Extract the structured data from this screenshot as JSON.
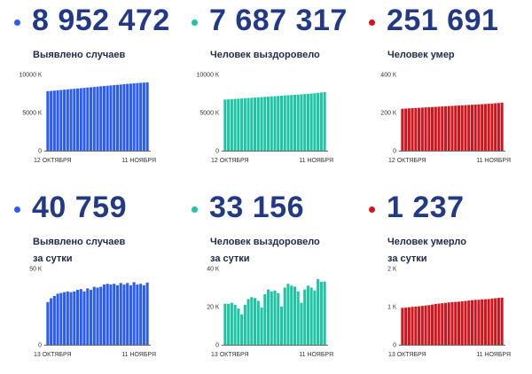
{
  "panels": [
    {
      "value": "8 952 472",
      "label_lines": [
        "Выявлено случаев"
      ],
      "color": "#2b5cf5",
      "chart_data": {
        "type": "bar",
        "x_start_label": "12 ОКТЯБРЯ",
        "x_end_label": "11 НОЯБРЯ",
        "y_tick_labels": [
          "10000 К",
          "5000 К",
          "0"
        ],
        "y_ticks": [
          10000,
          5000,
          0
        ],
        "ylim": [
          0,
          10000
        ],
        "units": "thousands",
        "values": [
          7800,
          7840,
          7880,
          7920,
          7960,
          8000,
          8040,
          8080,
          8120,
          8160,
          8200,
          8240,
          8280,
          8320,
          8360,
          8400,
          8440,
          8480,
          8520,
          8560,
          8600,
          8640,
          8680,
          8720,
          8760,
          8800,
          8840,
          8870,
          8900,
          8930,
          8953
        ]
      }
    },
    {
      "value": "7 687 317",
      "label_lines": [
        "Человек выздоровело"
      ],
      "color": "#1ec4a4",
      "chart_data": {
        "type": "bar",
        "x_start_label": "12 ОКТЯБРЯ",
        "x_end_label": "11 НОЯБРЯ",
        "y_tick_labels": [
          "10000 К",
          "5000 К",
          "0"
        ],
        "y_ticks": [
          10000,
          5000,
          0
        ],
        "ylim": [
          0,
          10000
        ],
        "units": "thousands",
        "values": [
          6700,
          6730,
          6760,
          6790,
          6820,
          6850,
          6880,
          6910,
          6940,
          6970,
          7000,
          7030,
          7060,
          7090,
          7120,
          7150,
          7180,
          7210,
          7240,
          7270,
          7300,
          7330,
          7360,
          7390,
          7420,
          7450,
          7490,
          7530,
          7580,
          7630,
          7687
        ]
      }
    },
    {
      "value": "251 691",
      "label_lines": [
        "Человек умер"
      ],
      "color": "#d3141c",
      "chart_data": {
        "type": "bar",
        "x_start_label": "12 ОКТЯБРЯ",
        "x_end_label": "11 НОЯБРЯ",
        "y_tick_labels": [
          "400 К",
          "200 К",
          "0"
        ],
        "y_ticks": [
          400,
          200,
          0
        ],
        "ylim": [
          0,
          400
        ],
        "units": "thousands",
        "values": [
          220,
          221,
          222,
          223,
          224,
          225,
          226,
          227,
          228,
          229,
          230,
          231,
          232,
          233,
          234,
          235,
          236,
          237,
          238,
          239,
          240,
          241,
          242,
          243,
          244,
          245,
          246,
          247,
          249,
          250,
          252
        ]
      }
    },
    {
      "value": "40 759",
      "label_lines": [
        "Выявлено случаев",
        "за сутки"
      ],
      "color": "#2b5cf5",
      "chart_data": {
        "type": "bar",
        "x_start_label": "13 ОКТЯБРЯ",
        "x_end_label": "11 НОЯБРЯ",
        "y_tick_labels": [
          "50 К",
          "0"
        ],
        "y_ticks": [
          50,
          0
        ],
        "ylim": [
          0,
          50
        ],
        "units": "thousands",
        "values": [
          28.0,
          30.5,
          32.0,
          33.5,
          34.0,
          34.5,
          35.0,
          34.5,
          35.0,
          36.0,
          36.5,
          35.0,
          37.0,
          36.0,
          38.0,
          37.5,
          38.0,
          39.5,
          40.0,
          39.5,
          40.0,
          39.0,
          40.5,
          39.5,
          40.5,
          39.0,
          41.0,
          39.5,
          40.0,
          39.0,
          40.8
        ]
      }
    },
    {
      "value": "33 156",
      "label_lines": [
        "Человек выздоровело",
        "за сутки"
      ],
      "color": "#1ec4a4",
      "chart_data": {
        "type": "bar",
        "x_start_label": "13 ОКТЯБРЯ",
        "x_end_label": "11 НОЯБРЯ",
        "y_tick_labels": [
          "40 К",
          "20 К",
          "0"
        ],
        "y_ticks": [
          40,
          20,
          0
        ],
        "ylim": [
          0,
          40
        ],
        "units": "thousands",
        "values": [
          21.5,
          21.5,
          22.0,
          21.0,
          19.0,
          16.0,
          21.0,
          24.0,
          25.0,
          24.5,
          23.0,
          19.5,
          26.5,
          29.0,
          28.0,
          28.5,
          27.0,
          20.0,
          30.0,
          32.0,
          31.0,
          30.5,
          28.0,
          22.0,
          29.0,
          31.0,
          30.0,
          28.5,
          34.5,
          33.0,
          33.2
        ]
      }
    },
    {
      "value": "1 237",
      "label_lines": [
        "Человек умерло",
        "за сутки"
      ],
      "color": "#d3141c",
      "chart_data": {
        "type": "bar",
        "x_start_label": "13 ОКТЯБРЯ",
        "x_end_label": "11 НОЯБРЯ",
        "y_tick_labels": [
          "2 К",
          "1 К",
          "0"
        ],
        "y_ticks": [
          2000,
          1000,
          0
        ],
        "ylim": [
          0,
          2000
        ],
        "units": "cases",
        "values": [
          970,
          975,
          985,
          995,
          1000,
          1010,
          1020,
          1030,
          1040,
          1055,
          1070,
          1080,
          1090,
          1100,
          1110,
          1120,
          1125,
          1130,
          1140,
          1150,
          1160,
          1170,
          1180,
          1180,
          1190,
          1195,
          1200,
          1210,
          1220,
          1230,
          1237
        ]
      }
    }
  ]
}
